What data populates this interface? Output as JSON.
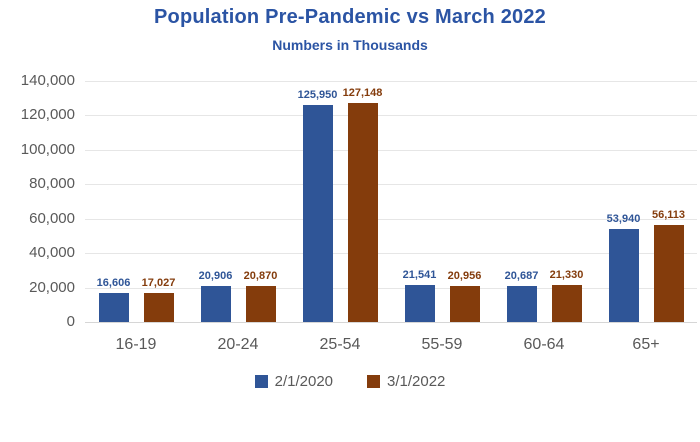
{
  "chart_data": {
    "type": "bar",
    "title": "Population Pre-Pandemic vs March 2022",
    "subtitle": "Numbers in Thousands",
    "title_color": "#2b54a4",
    "categories": [
      "16-19",
      "20-24",
      "25-54",
      "55-59",
      "60-64",
      "65+"
    ],
    "series": [
      {
        "name": "2/1/2020",
        "color": "#2F5597",
        "values": [
          16606,
          20906,
          125950,
          21541,
          20687,
          53940
        ]
      },
      {
        "name": "3/1/2022",
        "color": "#843C0C",
        "values": [
          17027,
          20870,
          127148,
          20956,
          21330,
          56113
        ]
      }
    ],
    "ylim": [
      0,
      140000
    ],
    "y_step": 20000,
    "y_tick_labels": [
      "0",
      "20,000",
      "40,000",
      "60,000",
      "80,000",
      "100,000",
      "120,000",
      "140,000"
    ],
    "grid": true,
    "legend_position": "bottom",
    "data_labels": true
  },
  "colors": {
    "axis_text": "#595959",
    "gridline": "#e6e6e6",
    "baseline": "#d6d6d6",
    "background": "#ffffff"
  }
}
